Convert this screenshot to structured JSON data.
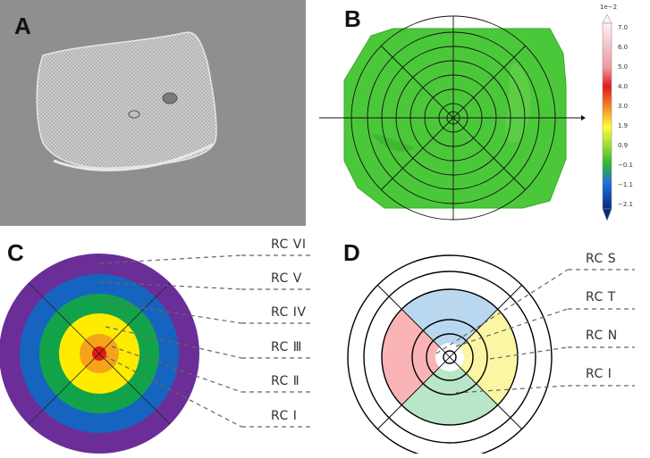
{
  "panels": {
    "a": "A",
    "b": "B",
    "c": "C",
    "d": "D"
  },
  "panel_b": {
    "colorbar_exponent": "1e−2",
    "colorbar_ticks": [
      "7.0",
      "6.0",
      "5.0",
      "4.0",
      "3.0",
      "1.9",
      "0.9",
      "−0.1",
      "−1.1",
      "−2.1"
    ],
    "colors": [
      "#ffe4ec",
      "#f4b3bd",
      "#ef8f95",
      "#e31a1c",
      "#f47c20",
      "#ffff33",
      "#c9e635",
      "#33c233",
      "#1f6fe0",
      "#0a2a7a"
    ],
    "map_color": "#4bc83a"
  },
  "panel_c": {
    "labels": [
      "RC VI",
      "RC V",
      "RC IV",
      "RC Ⅲ",
      "RC Ⅱ",
      "RC Ⅰ"
    ],
    "ring_colors": [
      "#6b2e99",
      "#1565c0",
      "#12a34a",
      "#ffeb00",
      "#f7a21b",
      "#e81414"
    ]
  },
  "panel_d": {
    "labels": [
      "RC S",
      "RC T",
      "RC N",
      "RC I"
    ],
    "sector_colors": {
      "S": "#b9d8f0",
      "T": "#fbb4b6",
      "N": "#fbf6a4",
      "I": "#b9e6c8"
    }
  }
}
